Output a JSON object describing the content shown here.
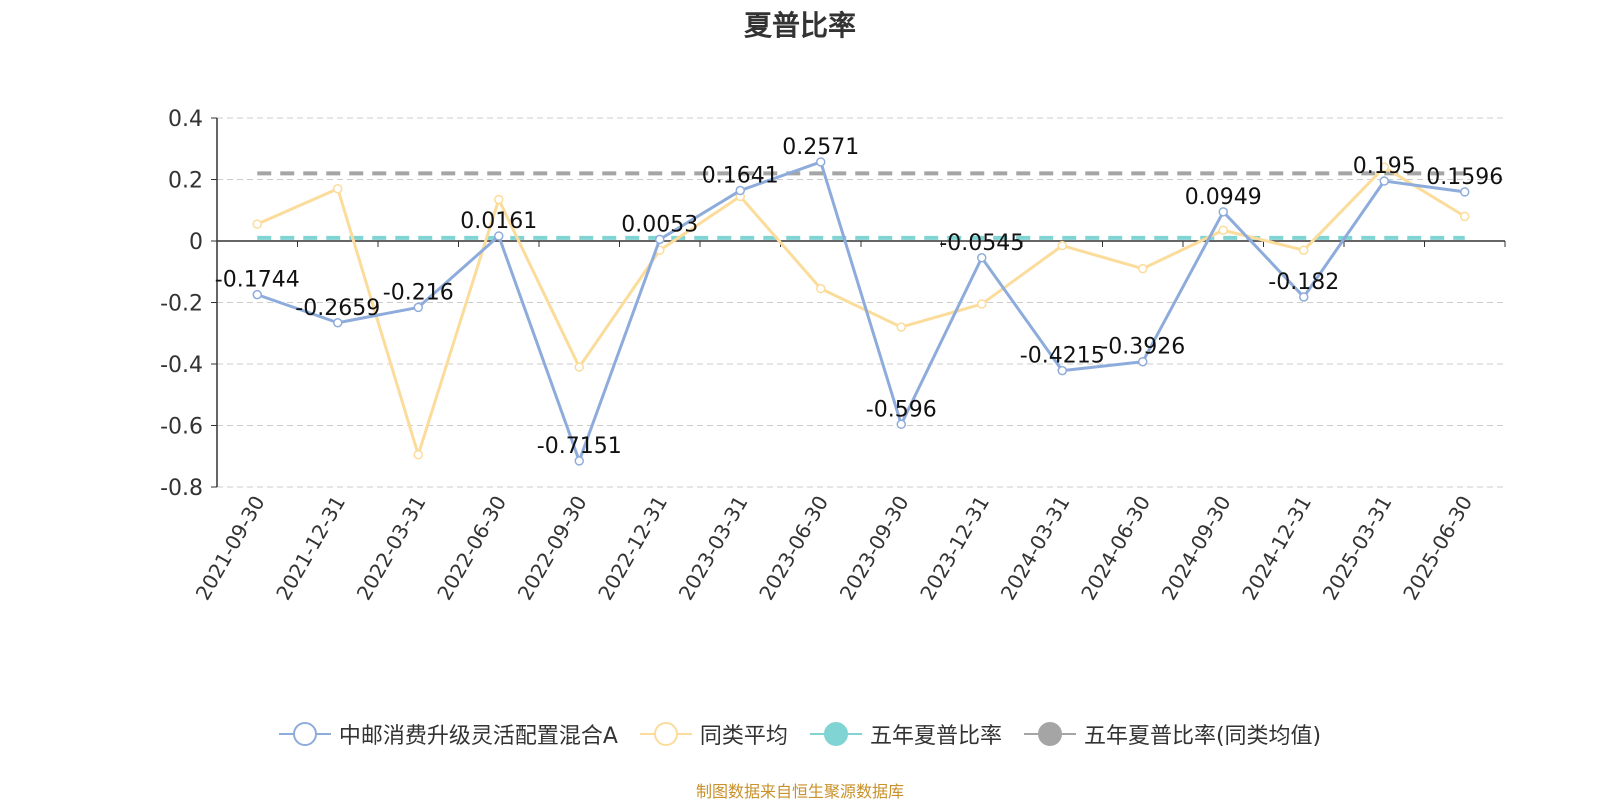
{
  "title": "夏普比率",
  "source_note": "制图数据来自恒生聚源数据库",
  "colors": {
    "fund": "#8eacdb",
    "peer": "#fbdc9b",
    "five_year": "#80d4d4",
    "five_year_peer": "#a5a5a5",
    "axis": "#333333",
    "grid": "#cccccc"
  },
  "chart_data": {
    "type": "line",
    "title": "夏普比率",
    "xlabel": "",
    "ylabel": "",
    "ylim": [
      -0.8,
      0.4
    ],
    "yticks": [
      0.4,
      0.2,
      0,
      -0.2,
      -0.4,
      -0.6,
      -0.8
    ],
    "ytick_labels": [
      "0.4",
      "0.2",
      "0",
      "-0.2",
      "-0.4",
      "-0.6",
      "-0.8"
    ],
    "grid": true,
    "legend_position": "bottom",
    "categories": [
      "2021-09-30",
      "2021-12-31",
      "2022-03-31",
      "2022-06-30",
      "2022-09-30",
      "2022-12-31",
      "2023-03-31",
      "2023-06-30",
      "2023-09-30",
      "2023-12-31",
      "2024-03-31",
      "2024-06-30",
      "2024-09-30",
      "2024-12-31",
      "2025-03-31",
      "2025-06-30"
    ],
    "series": [
      {
        "name": "中邮消费升级灵活配置混合A",
        "type": "line",
        "color": "#8eacdb",
        "values": [
          -0.1744,
          -0.2659,
          -0.216,
          0.0161,
          -0.7151,
          0.0053,
          0.1641,
          0.2571,
          -0.596,
          -0.0545,
          -0.4215,
          -0.3926,
          0.0949,
          -0.182,
          0.195,
          0.1596
        ],
        "labels": [
          "-0.1744",
          "-0.2659",
          "-0.216",
          "0.0161",
          "-0.7151",
          "0.0053",
          "0.1641",
          "0.2571",
          "-0.596",
          "-0.0545",
          "-0.4215",
          "-0.3926",
          "0.0949",
          "-0.182",
          "0.195",
          "0.1596"
        ]
      },
      {
        "name": "同类平均",
        "type": "line",
        "color": "#fbdc9b",
        "values": [
          0.055,
          0.17,
          -0.695,
          0.135,
          -0.41,
          -0.03,
          0.145,
          -0.155,
          -0.28,
          -0.205,
          -0.015,
          -0.09,
          0.035,
          -0.03,
          0.24,
          0.08
        ]
      },
      {
        "name": "五年夏普比率",
        "type": "reference",
        "color": "#80d4d4",
        "value": 0.01
      },
      {
        "name": "五年夏普比率(同类均值)",
        "type": "reference",
        "color": "#a5a5a5",
        "value": 0.22
      }
    ]
  }
}
